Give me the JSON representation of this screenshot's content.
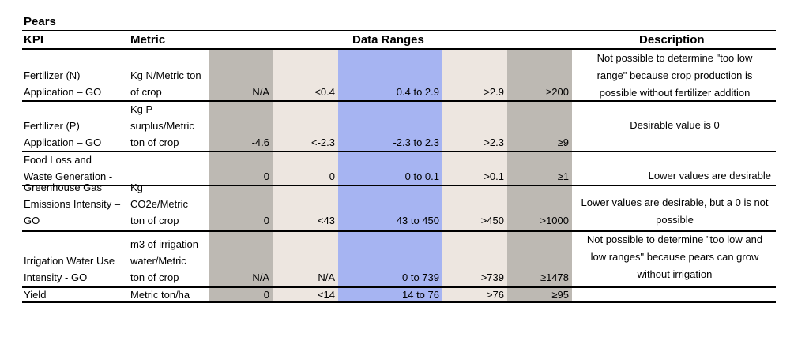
{
  "title": "Pears",
  "headers": {
    "kpi": "KPI",
    "metric": "Metric",
    "data_ranges": "Data Ranges",
    "description": "Description"
  },
  "colors": {
    "band_dark": "#bdb9b3",
    "band_light": "#ede6e0",
    "band_blue": "#a6b4f2"
  },
  "rows": [
    {
      "kpi": [
        "Fertilizer (N)",
        "Application – GO"
      ],
      "metric": [
        "Kg N/Metric ton",
        "of crop"
      ],
      "values": [
        "N/A",
        "<0.4",
        "0.4 to 2.9",
        ">2.9",
        "≥200"
      ],
      "description": [
        "Not possible to determine \"too low",
        "range\" because crop production is",
        "possible without fertilizer addition"
      ]
    },
    {
      "kpi": [
        "Fertilizer (P)",
        "Application – GO"
      ],
      "metric": [
        "Kg P",
        "surplus/Metric",
        "ton of crop"
      ],
      "values": [
        "-4.6",
        "<-2.3",
        "-2.3 to 2.3",
        ">2.3",
        "≥9"
      ],
      "description": [
        "Desirable value is 0"
      ]
    },
    {
      "kpi": [
        "Food Loss and",
        "Waste Generation -"
      ],
      "metric": [],
      "values": [
        "0",
        "0",
        "0 to 0.1",
        ">0.1",
        "≥1"
      ],
      "description": [
        "Lower values are desirable"
      ]
    },
    {
      "kpi": [
        "Greenhouse Gas",
        "Emissions Intensity –",
        "GO"
      ],
      "metric": [
        "Kg",
        "CO2e/Metric",
        "ton of crop"
      ],
      "values": [
        "0",
        "<43",
        "43 to 450",
        ">450",
        ">1000"
      ],
      "description": [
        "Lower values are desirable, but a 0 is not",
        "possible"
      ]
    },
    {
      "kpi": [
        "Irrigation Water Use",
        "Intensity - GO"
      ],
      "metric": [
        "m3 of irrigation",
        "water/Metric",
        "ton of crop"
      ],
      "values": [
        "N/A",
        "N/A",
        "0 to 739",
        ">739",
        "≥1478"
      ],
      "description": [
        "Not possible to determine \"too low and",
        "low ranges\" because pears can grow",
        "without irrigation"
      ]
    },
    {
      "kpi": [
        "Yield"
      ],
      "metric": [
        "Metric ton/ha"
      ],
      "values": [
        "0",
        "<14",
        "14  to 76",
        ">76",
        "≥95"
      ],
      "description": []
    }
  ]
}
